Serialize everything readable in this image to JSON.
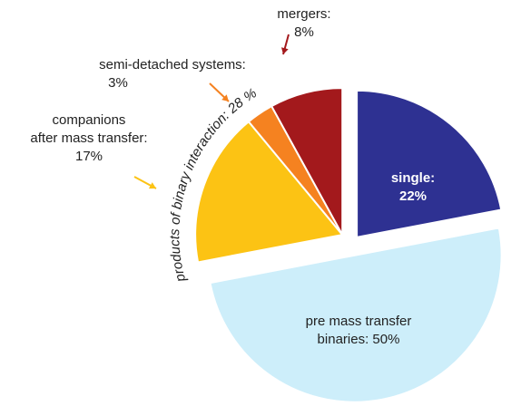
{
  "chart_data": {
    "type": "pie",
    "categories": [
      "single:",
      "pre mass transfer\nbinaries:",
      "companions\nafter mass transfer:",
      "semi-detached systems:",
      "mergers:"
    ],
    "values": [
      22,
      50,
      17,
      3,
      8
    ],
    "value_labels": [
      "22%",
      "50%",
      "17%",
      "3%",
      "8%"
    ],
    "colors": [
      "#2e3192",
      "#cdeefa",
      "#fcc314",
      "#f58220",
      "#a3191c"
    ],
    "annotation": "products of binary interaction: 28 %"
  }
}
